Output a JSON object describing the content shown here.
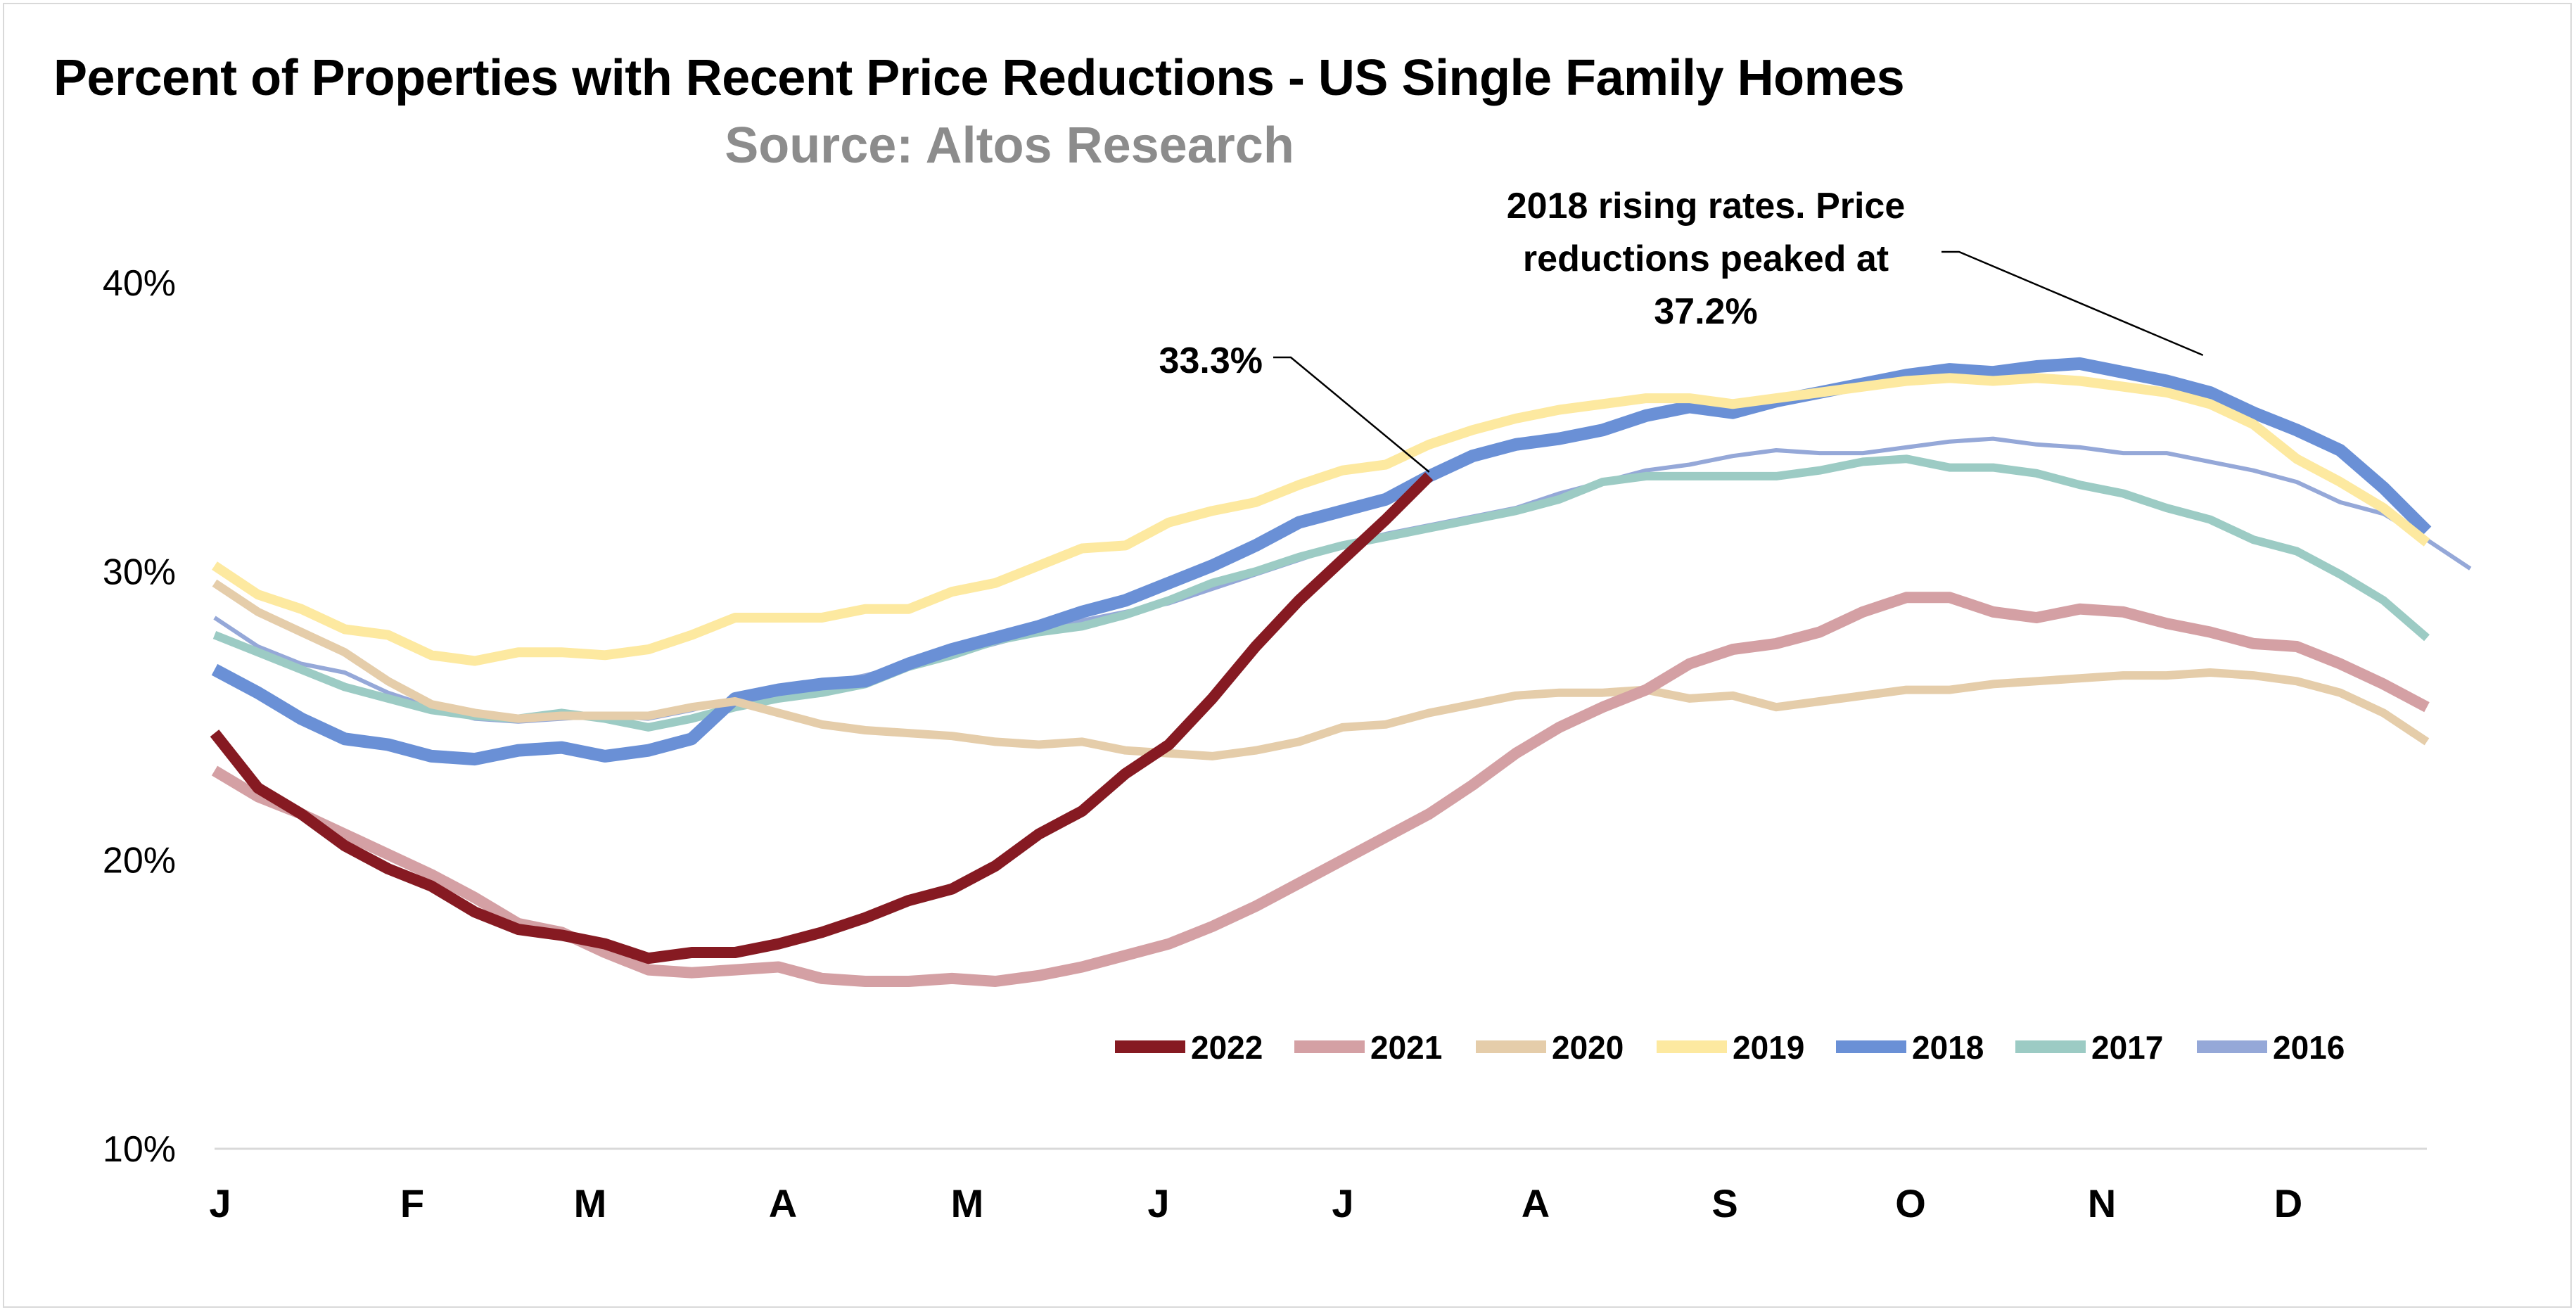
{
  "chart_data": {
    "type": "line",
    "title": "Percent of Properties with Recent Price Reductions - US Single Family Homes",
    "subtitle": "Source: Altos Research",
    "x_tick_labels": [
      "J",
      "F",
      "M",
      "A",
      "M",
      "J",
      "J",
      "A",
      "S",
      "O",
      "N",
      "D"
    ],
    "x_unit": "week of year",
    "xlim": [
      1,
      52
    ],
    "ylim": [
      0.1,
      0.4
    ],
    "y_ticks": [
      0.1,
      0.2,
      0.3,
      0.4
    ],
    "y_tick_labels": [
      "10%",
      "20%",
      "30%",
      "40%"
    ],
    "legend_position": "bottom-right",
    "annotations": [
      {
        "text_lines": [
          "33.3%"
        ],
        "x": 29,
        "y": 0.333
      },
      {
        "text_lines": [
          "2018 rising rates. Price",
          "reductions peaked at",
          "37.2%"
        ],
        "x": 47,
        "y": 0.372
      }
    ],
    "series": [
      {
        "name": "2022",
        "color": "#861a22",
        "width": 16,
        "values": [
          0.244,
          0.225,
          0.216,
          0.205,
          0.197,
          0.191,
          0.182,
          0.176,
          0.174,
          0.171,
          0.166,
          0.168,
          0.168,
          0.171,
          0.175,
          0.18,
          0.186,
          0.19,
          0.198,
          0.209,
          0.217,
          0.23,
          0.24,
          0.256,
          0.274,
          0.29,
          0.304,
          0.318,
          0.333
        ]
      },
      {
        "name": "2021",
        "color": "#d4a0a4",
        "width": 16,
        "values": [
          0.231,
          0.222,
          0.216,
          0.209,
          0.202,
          0.195,
          0.187,
          0.178,
          0.175,
          0.168,
          0.162,
          0.161,
          0.162,
          0.163,
          0.159,
          0.158,
          0.158,
          0.159,
          0.158,
          0.16,
          0.163,
          0.167,
          0.171,
          0.177,
          0.184,
          0.192,
          0.2,
          0.208,
          0.216,
          0.226,
          0.237,
          0.246,
          0.253,
          0.259,
          0.268,
          0.273,
          0.275,
          0.279,
          0.286,
          0.291,
          0.291,
          0.286,
          0.284,
          0.287,
          0.286,
          0.282,
          0.279,
          0.275,
          0.274,
          0.268,
          0.261,
          0.253
        ]
      },
      {
        "name": "2020",
        "color": "#e5cdaa",
        "width": 12,
        "values": [
          0.296,
          0.286,
          0.279,
          0.272,
          0.262,
          0.254,
          0.251,
          0.249,
          0.25,
          0.25,
          0.25,
          0.253,
          0.255,
          0.251,
          0.247,
          0.245,
          0.244,
          0.243,
          0.241,
          0.24,
          0.241,
          0.238,
          0.237,
          0.236,
          0.238,
          0.241,
          0.246,
          0.247,
          0.251,
          0.254,
          0.257,
          0.258,
          0.258,
          0.259,
          0.256,
          0.257,
          0.253,
          0.255,
          0.257,
          0.259,
          0.259,
          0.261,
          0.262,
          0.263,
          0.264,
          0.264,
          0.265,
          0.264,
          0.262,
          0.258,
          0.251,
          0.241
        ]
      },
      {
        "name": "2019",
        "color": "#fde9a0",
        "width": 14,
        "values": [
          0.302,
          0.292,
          0.287,
          0.28,
          0.278,
          0.271,
          0.269,
          0.272,
          0.272,
          0.271,
          0.273,
          0.278,
          0.284,
          0.284,
          0.284,
          0.287,
          0.287,
          0.293,
          0.296,
          0.302,
          0.308,
          0.309,
          0.317,
          0.321,
          0.324,
          0.33,
          0.335,
          0.337,
          0.344,
          0.349,
          0.353,
          0.356,
          0.358,
          0.36,
          0.36,
          0.358,
          0.36,
          0.362,
          0.364,
          0.366,
          0.367,
          0.366,
          0.367,
          0.366,
          0.364,
          0.362,
          0.358,
          0.351,
          0.339,
          0.331,
          0.322,
          0.31
        ]
      },
      {
        "name": "2018",
        "color": "#6a90d6",
        "width": 18,
        "values": [
          0.266,
          0.258,
          0.249,
          0.242,
          0.24,
          0.236,
          0.235,
          0.238,
          0.239,
          0.236,
          0.238,
          0.242,
          0.256,
          0.259,
          0.261,
          0.262,
          0.268,
          0.273,
          0.277,
          0.281,
          0.286,
          0.29,
          0.296,
          0.302,
          0.309,
          0.317,
          0.321,
          0.325,
          0.333,
          0.34,
          0.344,
          0.346,
          0.349,
          0.354,
          0.357,
          0.355,
          0.359,
          0.362,
          0.365,
          0.368,
          0.37,
          0.369,
          0.371,
          0.372,
          0.369,
          0.366,
          0.362,
          0.355,
          0.349,
          0.342,
          0.329,
          0.314
        ]
      },
      {
        "name": "2017",
        "color": "#9ccbc4",
        "width": 12,
        "values": [
          0.278,
          0.272,
          0.266,
          0.26,
          0.256,
          0.252,
          0.25,
          0.249,
          0.251,
          0.249,
          0.246,
          0.249,
          0.253,
          0.256,
          0.258,
          0.261,
          0.267,
          0.271,
          0.276,
          0.279,
          0.281,
          0.285,
          0.29,
          0.296,
          0.3,
          0.305,
          0.309,
          0.312,
          0.315,
          0.318,
          0.321,
          0.325,
          0.331,
          0.333,
          0.333,
          0.333,
          0.333,
          0.335,
          0.338,
          0.339,
          0.336,
          0.336,
          0.334,
          0.33,
          0.327,
          0.322,
          0.318,
          0.311,
          0.307,
          0.299,
          0.29,
          0.277
        ]
      },
      {
        "name": "2016",
        "color": "#95a8d8",
        "width": 6,
        "values": [
          0.284,
          0.274,
          0.268,
          0.265,
          0.258,
          0.253,
          0.249,
          0.248,
          0.249,
          0.25,
          0.249,
          0.252,
          0.256,
          0.258,
          0.261,
          0.264,
          0.268,
          0.271,
          0.275,
          0.279,
          0.283,
          0.286,
          0.289,
          0.294,
          0.299,
          0.304,
          0.309,
          0.313,
          0.316,
          0.319,
          0.322,
          0.327,
          0.331,
          0.335,
          0.337,
          0.34,
          0.342,
          0.341,
          0.341,
          0.343,
          0.345,
          0.346,
          0.344,
          0.343,
          0.341,
          0.341,
          0.338,
          0.335,
          0.331,
          0.324,
          0.32,
          0.311,
          0.301
        ]
      }
    ]
  }
}
